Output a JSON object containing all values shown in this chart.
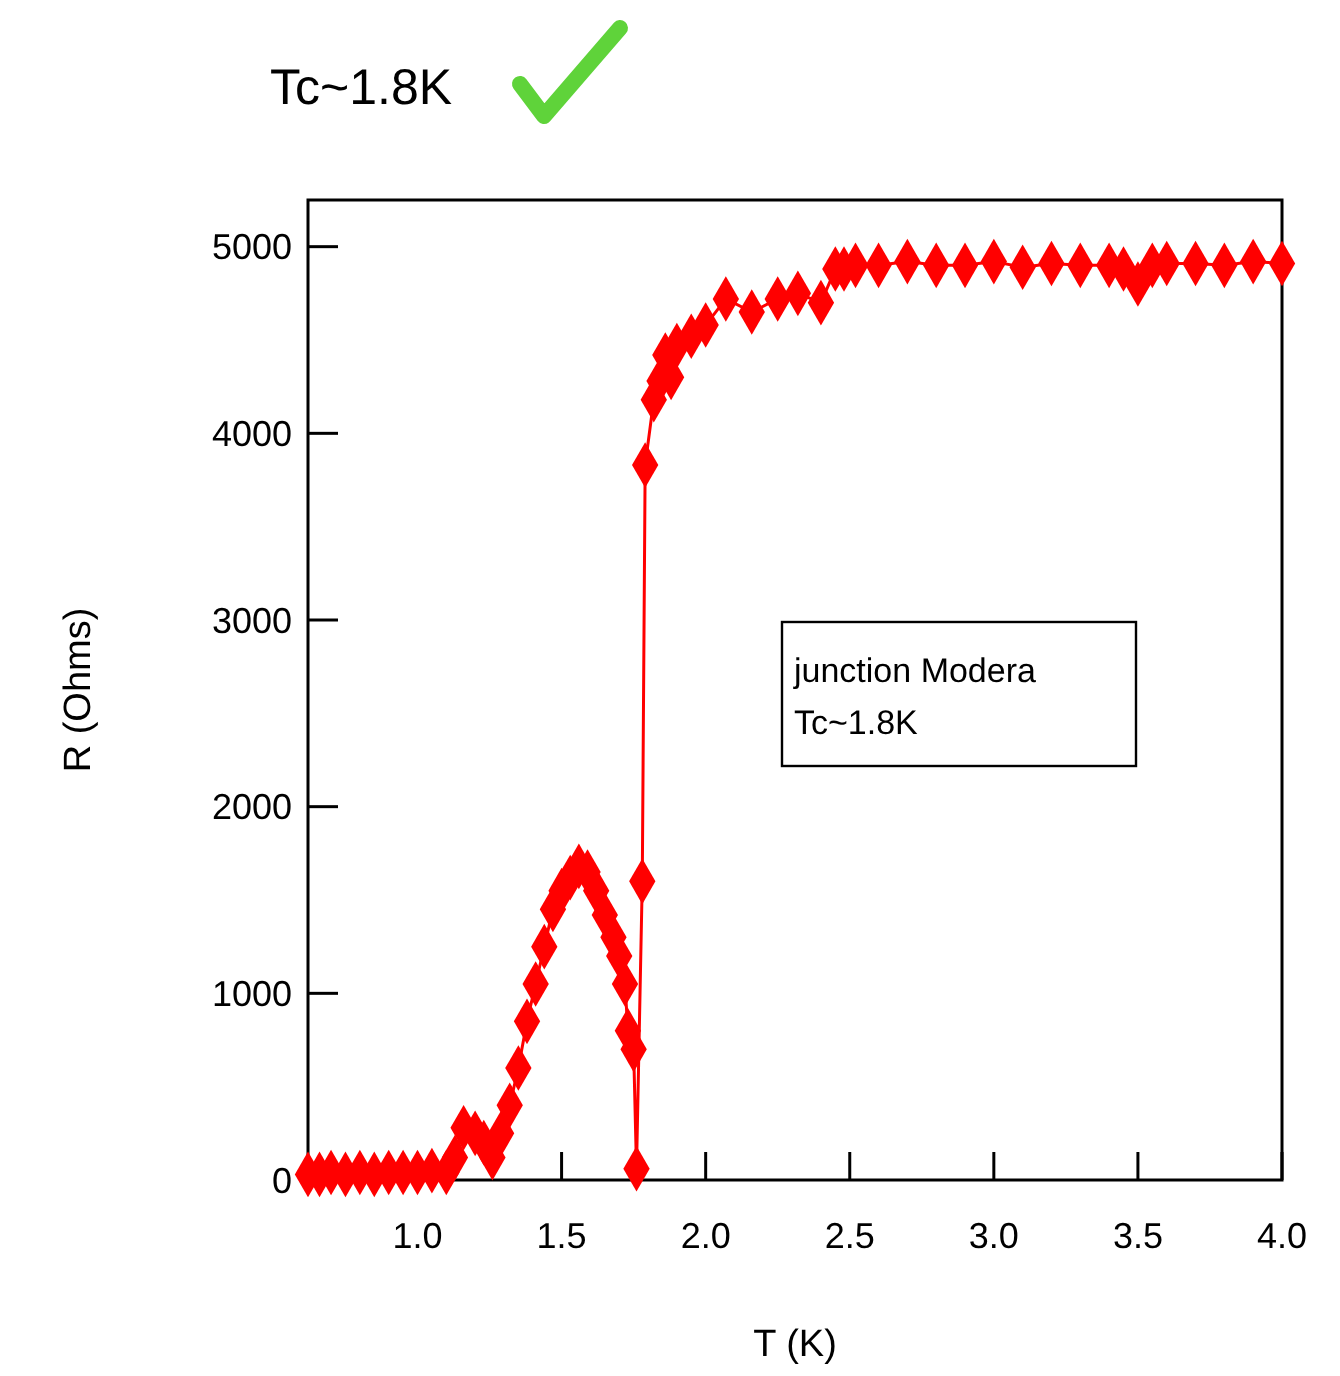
{
  "chart_data": {
    "type": "line",
    "title": "Tc~1.8K",
    "xlabel": "T (K)",
    "ylabel": "R (Ohms)",
    "xlim": [
      0.62,
      4.0
    ],
    "ylim": [
      0,
      5250
    ],
    "xticks": [
      {
        "value": 1.0,
        "label": "1.0"
      },
      {
        "value": 1.5,
        "label": "1.5"
      },
      {
        "value": 2.0,
        "label": "2.0"
      },
      {
        "value": 2.5,
        "label": "2.5"
      },
      {
        "value": 3.0,
        "label": "3.0"
      },
      {
        "value": 3.5,
        "label": "3.5"
      },
      {
        "value": 4.0,
        "label": "4.0"
      }
    ],
    "yticks": [
      0,
      1000,
      2000,
      3000,
      4000,
      5000
    ],
    "grid": false,
    "marker": "diamond",
    "line_style": "solid",
    "annotations": [
      "junction Modera\nTc~1.8K"
    ],
    "series": [
      {
        "color": "#ff0000",
        "x": [
          0.62,
          0.66,
          0.7,
          0.75,
          0.8,
          0.85,
          0.9,
          0.95,
          1.0,
          1.05,
          1.1,
          1.13,
          1.16,
          1.2,
          1.23,
          1.26,
          1.29,
          1.32,
          1.35,
          1.38,
          1.41,
          1.44,
          1.47,
          1.5,
          1.53,
          1.56,
          1.59,
          1.62,
          1.65,
          1.68,
          1.7,
          1.72,
          1.73,
          1.75,
          1.76,
          1.78,
          1.79,
          1.82,
          1.84,
          1.86,
          1.88,
          1.9,
          1.95,
          2.0,
          2.07,
          2.16,
          2.25,
          2.32,
          2.4,
          2.45,
          2.48,
          2.52,
          2.6,
          2.7,
          2.8,
          2.9,
          3.0,
          3.1,
          3.2,
          3.3,
          3.4,
          3.45,
          3.5,
          3.55,
          3.6,
          3.7,
          3.8,
          3.9,
          4.0
        ],
        "values": [
          30,
          30,
          40,
          30,
          40,
          30,
          40,
          40,
          40,
          50,
          40,
          120,
          280,
          250,
          200,
          120,
          250,
          400,
          600,
          850,
          1050,
          1250,
          1450,
          1550,
          1620,
          1680,
          1650,
          1550,
          1420,
          1300,
          1200,
          1050,
          800,
          700,
          60,
          1600,
          3830,
          4180,
          4280,
          4420,
          4300,
          4470,
          4520,
          4580,
          4720,
          4650,
          4720,
          4750,
          4700,
          4880,
          4880,
          4900,
          4900,
          4920,
          4900,
          4900,
          4920,
          4890,
          4910,
          4900,
          4900,
          4880,
          4800,
          4900,
          4910,
          4910,
          4900,
          4920,
          4910
        ]
      }
    ]
  }
}
